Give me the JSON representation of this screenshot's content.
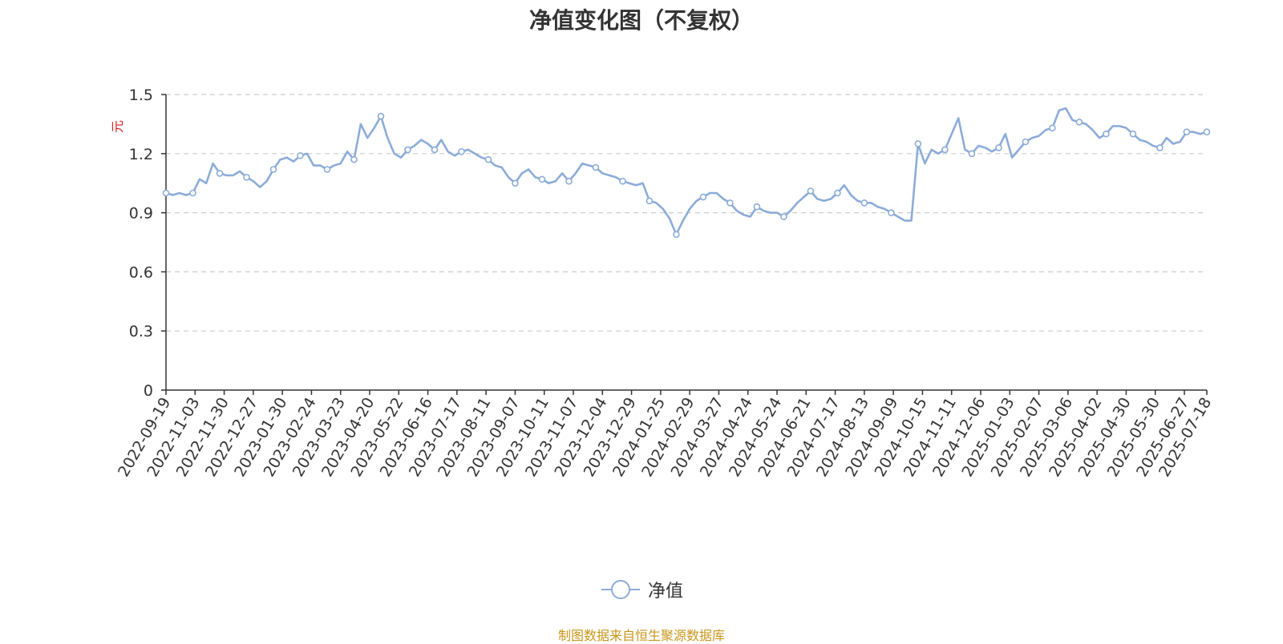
{
  "chart_data": {
    "type": "line",
    "title": "净值变化图（不复权）",
    "ylabel": "元",
    "ylim": [
      0,
      1.5
    ],
    "yticks": [
      "0",
      "0.3",
      "0.6",
      "0.9",
      "1.2",
      "1.5"
    ],
    "ytick_values": [
      0,
      0.3,
      0.6,
      0.9,
      1.2,
      1.5
    ],
    "grid": true,
    "legend_position": "bottom-center",
    "x_date_labels": [
      "2022-09-19",
      "2022-11-03",
      "2022-11-30",
      "2022-12-27",
      "2023-01-30",
      "2023-02-24",
      "2023-03-23",
      "2023-04-20",
      "2023-05-22",
      "2023-06-16",
      "2023-07-17",
      "2023-08-11",
      "2023-09-07",
      "2023-10-11",
      "2023-11-07",
      "2023-12-04",
      "2023-12-29",
      "2024-01-25",
      "2024-02-29",
      "2024-03-27",
      "2024-04-24",
      "2024-05-24",
      "2024-06-21",
      "2024-07-17",
      "2024-08-13",
      "2024-09-09",
      "2024-10-15",
      "2024-11-11",
      "2024-12-06",
      "2025-01-03",
      "2025-02-07",
      "2025-03-06",
      "2025-04-02",
      "2025-04-30",
      "2025-05-30",
      "2025-06-27",
      "2025-07-18"
    ],
    "series": [
      {
        "name": "净值",
        "color": "#8cacd8",
        "values": [
          1.0,
          0.99,
          1.0,
          0.99,
          1.0,
          1.07,
          1.05,
          1.15,
          1.1,
          1.09,
          1.09,
          1.11,
          1.08,
          1.06,
          1.03,
          1.06,
          1.12,
          1.17,
          1.18,
          1.16,
          1.19,
          1.2,
          1.14,
          1.14,
          1.12,
          1.14,
          1.15,
          1.21,
          1.17,
          1.35,
          1.28,
          1.33,
          1.39,
          1.28,
          1.2,
          1.18,
          1.22,
          1.24,
          1.27,
          1.25,
          1.22,
          1.27,
          1.21,
          1.19,
          1.21,
          1.22,
          1.2,
          1.18,
          1.17,
          1.14,
          1.13,
          1.08,
          1.05,
          1.1,
          1.12,
          1.08,
          1.07,
          1.05,
          1.06,
          1.1,
          1.06,
          1.1,
          1.15,
          1.14,
          1.13,
          1.1,
          1.09,
          1.08,
          1.06,
          1.05,
          1.04,
          1.05,
          0.96,
          0.95,
          0.92,
          0.87,
          0.79,
          0.86,
          0.92,
          0.96,
          0.98,
          1.0,
          1.0,
          0.97,
          0.95,
          0.91,
          0.89,
          0.88,
          0.93,
          0.91,
          0.9,
          0.9,
          0.88,
          0.91,
          0.95,
          0.98,
          1.01,
          0.97,
          0.96,
          0.97,
          1.0,
          1.04,
          0.99,
          0.96,
          0.95,
          0.95,
          0.93,
          0.92,
          0.9,
          0.88,
          0.86,
          0.86,
          1.25,
          1.15,
          1.22,
          1.2,
          1.22,
          1.3,
          1.38,
          1.22,
          1.2,
          1.24,
          1.23,
          1.21,
          1.23,
          1.3,
          1.18,
          1.22,
          1.26,
          1.28,
          1.29,
          1.32,
          1.33,
          1.42,
          1.43,
          1.37,
          1.36,
          1.35,
          1.32,
          1.28,
          1.3,
          1.34,
          1.34,
          1.33,
          1.3,
          1.27,
          1.26,
          1.24,
          1.23,
          1.28,
          1.25,
          1.26,
          1.31,
          1.31,
          1.3,
          1.31
        ]
      }
    ]
  },
  "legend": {
    "label": "净值"
  },
  "source_note": "制图数据来自恒生聚源数据库"
}
